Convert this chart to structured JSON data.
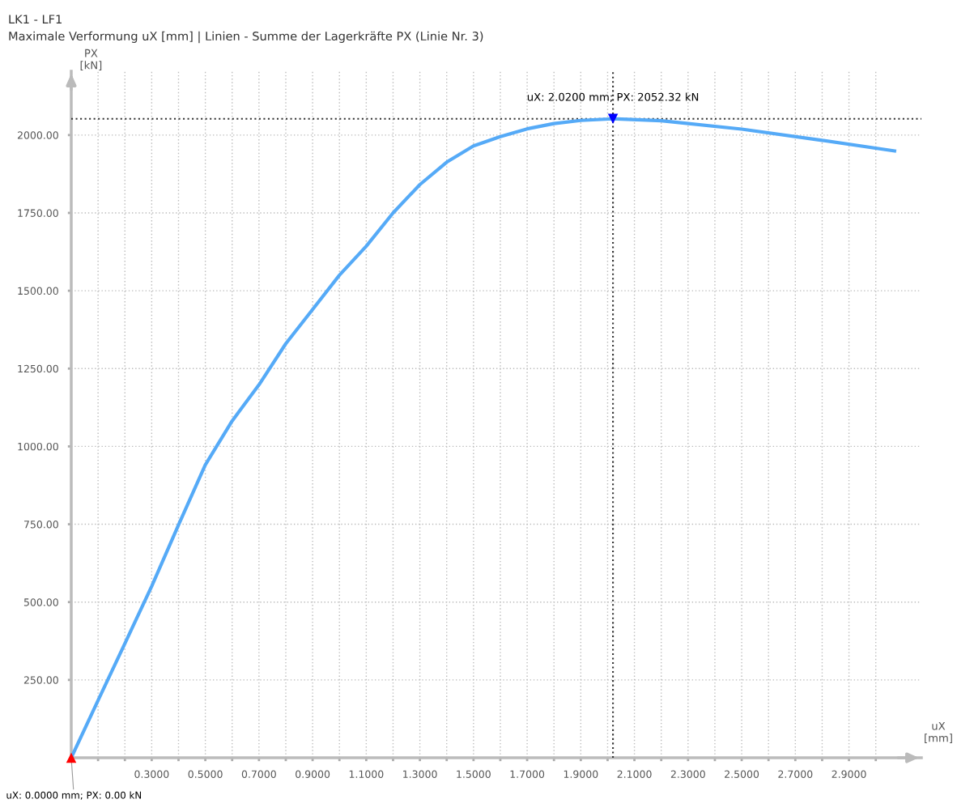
{
  "chart_data": {
    "type": "line",
    "title": "LK1 - LF1",
    "subtitle": "Maximale Verformung uX [mm] | Linien - Summe der Lagerkräfte PX (Linie Nr. 3)",
    "xlabel": "uX\n[mm]",
    "ylabel": "PX\n[kN]",
    "series": [
      {
        "color": "#55aaf7",
        "x": [
          0,
          0.1,
          0.2,
          0.3,
          0.4,
          0.5,
          0.6,
          0.7,
          0.8,
          0.9,
          1.0,
          1.1,
          1.2,
          1.3,
          1.4,
          1.5,
          1.6,
          1.7,
          1.8,
          1.9,
          2.02,
          2.2,
          2.5,
          2.8,
          3.07
        ],
        "values": [
          0,
          184,
          367,
          551,
          748,
          941,
          1082,
          1198,
          1330,
          1440,
          1550,
          1643,
          1750,
          1841,
          1913,
          1965,
          1995,
          2020,
          2037,
          2047,
          2052.32,
          2046,
          2019,
          1983,
          1949
        ]
      }
    ],
    "xlim": [
      0,
      3.17
    ],
    "ylim": [
      0,
      2205
    ],
    "xticks": [
      {
        "value": 0.1,
        "label": null
      },
      {
        "value": 0.2,
        "label": null
      },
      {
        "value": 0.3,
        "label": "0.3000"
      },
      {
        "value": 0.4,
        "label": null
      },
      {
        "value": 0.5,
        "label": "0.5000"
      },
      {
        "value": 0.6,
        "label": null
      },
      {
        "value": 0.7,
        "label": "0.7000"
      },
      {
        "value": 0.8,
        "label": null
      },
      {
        "value": 0.9,
        "label": "0.9000"
      },
      {
        "value": 1.0,
        "label": null
      },
      {
        "value": 1.1,
        "label": "1.1000"
      },
      {
        "value": 1.2,
        "label": null
      },
      {
        "value": 1.3,
        "label": "1.3000"
      },
      {
        "value": 1.4,
        "label": null
      },
      {
        "value": 1.5,
        "label": "1.5000"
      },
      {
        "value": 1.6,
        "label": null
      },
      {
        "value": 1.7,
        "label": "1.7000"
      },
      {
        "value": 1.8,
        "label": null
      },
      {
        "value": 1.9,
        "label": "1.9000"
      },
      {
        "value": 2.0,
        "label": null
      },
      {
        "value": 2.1,
        "label": "2.1000"
      },
      {
        "value": 2.2,
        "label": null
      },
      {
        "value": 2.3,
        "label": "2.3000"
      },
      {
        "value": 2.4,
        "label": null
      },
      {
        "value": 2.5,
        "label": "2.5000"
      },
      {
        "value": 2.6,
        "label": null
      },
      {
        "value": 2.7,
        "label": "2.7000"
      },
      {
        "value": 2.8,
        "label": null
      },
      {
        "value": 2.9,
        "label": "2.9000"
      },
      {
        "value": 3.0,
        "label": null
      }
    ],
    "yticks": [
      {
        "value": 250,
        "label": "250.00"
      },
      {
        "value": 500,
        "label": "500.00"
      },
      {
        "value": 750,
        "label": "750.00"
      },
      {
        "value": 1000,
        "label": "1000.00"
      },
      {
        "value": 1250,
        "label": "1250.00"
      },
      {
        "value": 1500,
        "label": "1500.00"
      },
      {
        "value": 1750,
        "label": "1750.00"
      },
      {
        "value": 2000,
        "label": "2000.00"
      }
    ],
    "grid": true,
    "line_style": "solid",
    "marker": "none",
    "ref_lines": [
      {
        "axis": "y",
        "value": 2052.32,
        "color": "#333333",
        "line_style": "dotted"
      },
      {
        "axis": "x",
        "value": 2.02,
        "color": "#333333",
        "line_style": "dotted"
      }
    ],
    "annotations": [
      {
        "text": "uX: 2.0200 mm; PX: 2052.32 kN",
        "x": 2.02,
        "y": 2052.32
      },
      {
        "text": "uX: 0.0000 mm; PX: 0.00 kN",
        "x": 0,
        "y": 0
      }
    ]
  }
}
